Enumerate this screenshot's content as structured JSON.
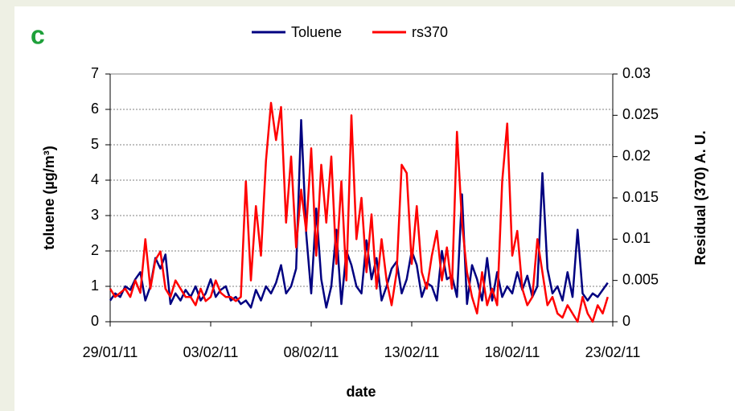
{
  "chart_data": {
    "type": "line",
    "panel_label": "c",
    "xlabel": "date",
    "ylabel": "toluene (µg/m³)",
    "y2label": "Residual (370) A. U.",
    "x": [
      "29/01/11 00:00",
      "29/01/11 06:00",
      "29/01/11 12:00",
      "29/01/11 18:00",
      "30/01/11 00:00",
      "30/01/11 06:00",
      "30/01/11 12:00",
      "30/01/11 18:00",
      "31/01/11 00:00",
      "31/01/11 06:00",
      "31/01/11 12:00",
      "31/01/11 18:00",
      "01/02/11 00:00",
      "01/02/11 06:00",
      "01/02/11 12:00",
      "01/02/11 18:00",
      "02/02/11 00:00",
      "02/02/11 06:00",
      "02/02/11 12:00",
      "02/02/11 18:00",
      "03/02/11 00:00",
      "03/02/11 06:00",
      "03/02/11 12:00",
      "03/02/11 18:00",
      "04/02/11 00:00",
      "04/02/11 06:00",
      "04/02/11 12:00",
      "04/02/11 18:00",
      "05/02/11 00:00",
      "05/02/11 06:00",
      "05/02/11 12:00",
      "05/02/11 18:00",
      "06/02/11 00:00",
      "06/02/11 06:00",
      "06/02/11 12:00",
      "06/02/11 18:00",
      "07/02/11 00:00",
      "07/02/11 06:00",
      "07/02/11 12:00",
      "07/02/11 18:00",
      "08/02/11 00:00",
      "08/02/11 06:00",
      "08/02/11 12:00",
      "08/02/11 18:00",
      "09/02/11 00:00",
      "09/02/11 06:00",
      "09/02/11 12:00",
      "09/02/11 18:00",
      "10/02/11 00:00",
      "10/02/11 06:00",
      "10/02/11 12:00",
      "10/02/11 18:00",
      "11/02/11 00:00",
      "11/02/11 06:00",
      "11/02/11 12:00",
      "11/02/11 18:00",
      "12/02/11 00:00",
      "12/02/11 06:00",
      "12/02/11 12:00",
      "12/02/11 18:00",
      "13/02/11 00:00",
      "13/02/11 06:00",
      "13/02/11 12:00",
      "13/02/11 18:00",
      "14/02/11 00:00",
      "14/02/11 06:00",
      "14/02/11 12:00",
      "14/02/11 18:00",
      "15/02/11 00:00",
      "15/02/11 06:00",
      "15/02/11 12:00",
      "15/02/11 18:00",
      "16/02/11 00:00",
      "16/02/11 06:00",
      "16/02/11 12:00",
      "16/02/11 18:00",
      "17/02/11 00:00",
      "17/02/11 06:00",
      "17/02/11 12:00",
      "17/02/11 18:00",
      "18/02/11 00:00",
      "18/02/11 06:00",
      "18/02/11 12:00",
      "18/02/11 18:00",
      "19/02/11 00:00",
      "19/02/11 06:00",
      "19/02/11 12:00",
      "19/02/11 18:00",
      "20/02/11 00:00",
      "20/02/11 06:00",
      "20/02/11 12:00",
      "20/02/11 18:00",
      "21/02/11 00:00",
      "21/02/11 06:00",
      "21/02/11 12:00",
      "21/02/11 18:00",
      "22/02/11 00:00",
      "22/02/11 06:00",
      "22/02/11 12:00",
      "22/02/11 18:00"
    ],
    "series": [
      {
        "name": "Toluene",
        "color": "#000080",
        "axis": "y",
        "values": [
          0.6,
          0.8,
          0.7,
          1.0,
          0.9,
          1.2,
          1.4,
          0.6,
          1.0,
          1.8,
          1.5,
          1.9,
          0.5,
          0.8,
          0.6,
          0.9,
          0.7,
          1.0,
          0.6,
          0.8,
          1.2,
          0.7,
          0.9,
          1.0,
          0.6,
          0.7,
          0.5,
          0.6,
          0.4,
          0.9,
          0.6,
          1.0,
          0.8,
          1.1,
          1.6,
          0.8,
          1.0,
          1.5,
          5.7,
          2.5,
          0.8,
          3.2,
          1.2,
          0.4,
          1.0,
          2.6,
          0.5,
          2.0,
          1.6,
          1.0,
          0.8,
          2.3,
          1.2,
          1.8,
          0.6,
          1.0,
          1.5,
          1.7,
          0.8,
          1.2,
          2.0,
          1.6,
          0.7,
          1.1,
          1.0,
          0.6,
          2.0,
          1.2,
          1.3,
          0.7,
          3.6,
          0.5,
          1.6,
          1.2,
          0.6,
          1.8,
          0.6,
          1.4,
          0.7,
          1.0,
          0.8,
          1.4,
          0.9,
          1.3,
          0.7,
          1.0,
          4.2,
          1.5,
          0.8,
          1.0,
          0.6,
          1.4,
          0.7,
          2.6,
          0.8,
          0.6,
          0.8,
          0.7,
          0.9,
          1.1
        ]
      },
      {
        "name": "rs370",
        "color": "#ff0000",
        "axis": "y2",
        "values": [
          0.004,
          0.003,
          0.0035,
          0.004,
          0.003,
          0.005,
          0.0035,
          0.01,
          0.004,
          0.0075,
          0.0085,
          0.004,
          0.003,
          0.005,
          0.004,
          0.003,
          0.003,
          0.002,
          0.004,
          0.0025,
          0.003,
          0.005,
          0.0035,
          0.003,
          0.003,
          0.0025,
          0.003,
          0.017,
          0.005,
          0.014,
          0.008,
          0.0195,
          0.0265,
          0.022,
          0.026,
          0.012,
          0.02,
          0.009,
          0.016,
          0.011,
          0.021,
          0.008,
          0.019,
          0.012,
          0.02,
          0.007,
          0.017,
          0.005,
          0.025,
          0.01,
          0.015,
          0.006,
          0.013,
          0.004,
          0.01,
          0.005,
          0.002,
          0.006,
          0.019,
          0.018,
          0.007,
          0.014,
          0.006,
          0.004,
          0.008,
          0.011,
          0.005,
          0.009,
          0.004,
          0.023,
          0.012,
          0.006,
          0.003,
          0.001,
          0.006,
          0.002,
          0.004,
          0.002,
          0.017,
          0.024,
          0.008,
          0.011,
          0.004,
          0.002,
          0.003,
          0.01,
          0.006,
          0.002,
          0.003,
          0.001,
          0.0005,
          0.002,
          0.001,
          0,
          0.003,
          0.001,
          0,
          0.002,
          0.001,
          0.003
        ]
      }
    ],
    "xlim": [
      "29/01/11 00:00",
      "23/02/11 00:00"
    ],
    "xticks": [
      {
        "value": "29/01/11 00:00",
        "label": "29/01/11"
      },
      {
        "value": "03/02/11 00:00",
        "label": "03/02/11"
      },
      {
        "value": "08/02/11 00:00",
        "label": "08/02/11"
      },
      {
        "value": "13/02/11 00:00",
        "label": "13/02/11"
      },
      {
        "value": "18/02/11 00:00",
        "label": "18/02/11"
      },
      {
        "value": "23/02/11 00:00",
        "label": "23/02/11"
      }
    ],
    "ylim": [
      0,
      7
    ],
    "yticks": [
      0,
      1,
      2,
      3,
      4,
      5,
      6,
      7
    ],
    "y2lim": [
      0,
      0.03
    ],
    "y2ticks": [
      0,
      0.005,
      0.01,
      0.015,
      0.02,
      0.025,
      0.03
    ],
    "grid": true,
    "legend": "top"
  }
}
